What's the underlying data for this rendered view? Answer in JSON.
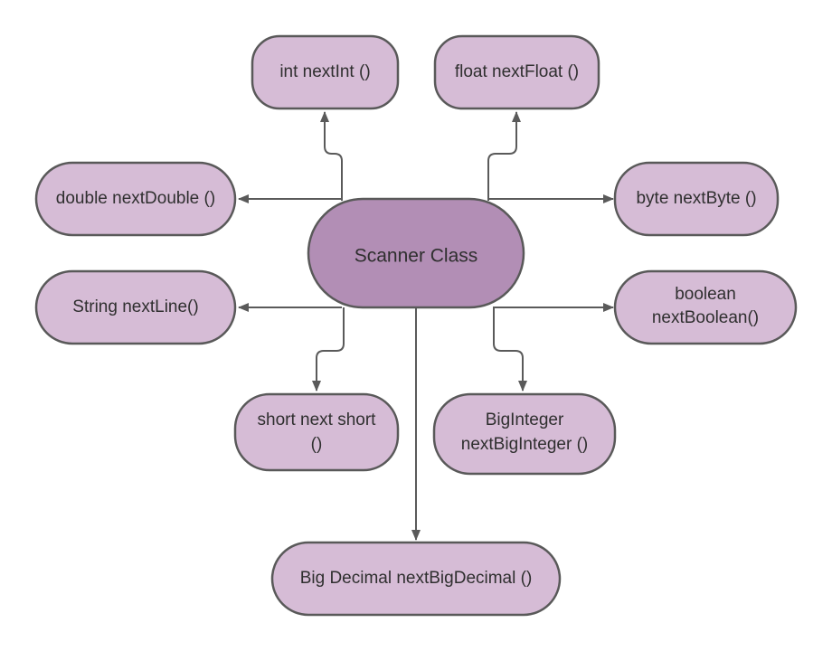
{
  "colors": {
    "center_fill": "#b28eb5",
    "node_fill": "#d6bcd6",
    "stroke": "#595959",
    "connector": "#5a5a5a",
    "text": "#2f2f2f"
  },
  "center": {
    "label": "Scanner Class"
  },
  "nodes": {
    "next_int": {
      "line1": "int nextInt ()"
    },
    "next_float": {
      "line1": "float nextFloat ()"
    },
    "next_double": {
      "line1": "double nextDouble ()"
    },
    "next_byte": {
      "line1": "byte nextByte ()"
    },
    "next_line": {
      "line1": "String nextLine()"
    },
    "next_boolean": {
      "line1": "boolean",
      "line2": "nextBoolean()"
    },
    "next_short": {
      "line1": "short next short",
      "line2": "()"
    },
    "next_big_integer": {
      "line1": "BigInteger",
      "line2": "nextBigInteger  ()"
    },
    "next_big_decimal": {
      "line1": "Big Decimal nextBigDecimal ()"
    }
  }
}
